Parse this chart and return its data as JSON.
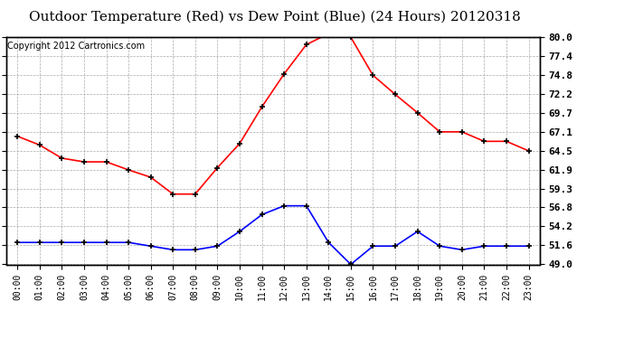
{
  "title": "Outdoor Temperature (Red) vs Dew Point (Blue) (24 Hours) 20120318",
  "copyright": "Copyright 2012 Cartronics.com",
  "hours": [
    "00:00",
    "01:00",
    "02:00",
    "03:00",
    "04:00",
    "05:00",
    "06:00",
    "07:00",
    "08:00",
    "09:00",
    "10:00",
    "11:00",
    "12:00",
    "13:00",
    "14:00",
    "15:00",
    "16:00",
    "17:00",
    "18:00",
    "19:00",
    "20:00",
    "21:00",
    "22:00",
    "23:00"
  ],
  "temp": [
    66.5,
    65.3,
    63.5,
    63.0,
    63.0,
    61.9,
    60.9,
    58.6,
    58.6,
    62.2,
    65.5,
    70.5,
    75.0,
    79.0,
    80.5,
    80.0,
    74.8,
    72.2,
    69.7,
    67.1,
    67.1,
    65.8,
    65.8,
    64.5
  ],
  "dew": [
    52.0,
    52.0,
    52.0,
    52.0,
    52.0,
    52.0,
    51.5,
    51.0,
    51.0,
    51.5,
    53.5,
    55.8,
    57.0,
    57.0,
    52.0,
    49.0,
    51.5,
    51.5,
    53.5,
    51.5,
    51.0,
    51.5,
    51.5,
    51.5
  ],
  "temp_color": "#ff0000",
  "dew_color": "#0000ff",
  "yticks": [
    49.0,
    51.6,
    54.2,
    56.8,
    59.3,
    61.9,
    64.5,
    67.1,
    69.7,
    72.2,
    74.8,
    77.4,
    80.0
  ],
  "ymin": 49.0,
  "ymax": 80.0,
  "bg_color": "#ffffff",
  "grid_color": "#aaaaaa",
  "title_fontsize": 11,
  "copyright_fontsize": 7,
  "tick_fontsize": 8,
  "xtick_fontsize": 7
}
